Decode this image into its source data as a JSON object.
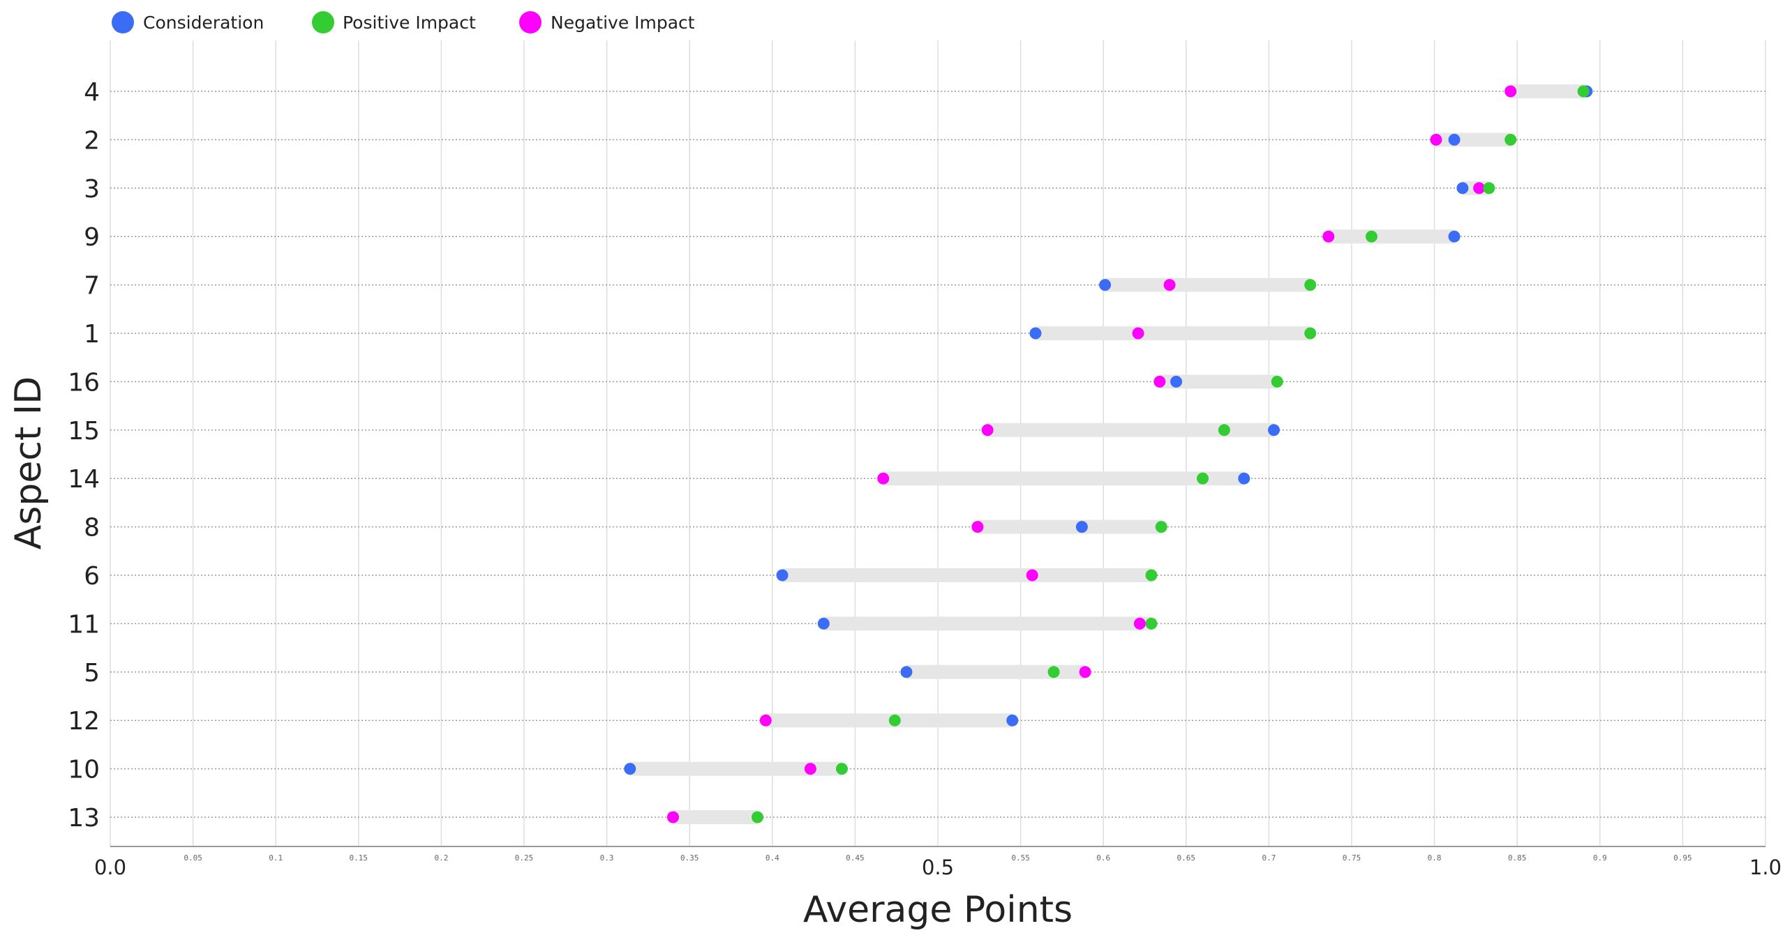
{
  "chart_data": {
    "type": "dumbbell",
    "xlabel": "Average Points",
    "ylabel": "Aspect ID",
    "xlim": [
      0,
      1
    ],
    "grid": {
      "vertical": true
    },
    "legend": {
      "placement": "top-left",
      "entries": [
        {
          "key": "consideration",
          "label": "Consideration"
        },
        {
          "key": "positive",
          "label": "Positive Impact"
        },
        {
          "key": "negative",
          "label": "Negative Impact"
        }
      ]
    },
    "colors": {
      "consideration": "#3b6cf5",
      "positive": "#33cc33",
      "negative": "#ff00ff",
      "range_bar": "#e6e6e6",
      "grid": "#dddddd",
      "row_line": "#999999"
    },
    "x_ticks": [
      {
        "v": 0,
        "label": "0.0",
        "major": true
      },
      {
        "v": 0.05,
        "label": "0.05",
        "major": false
      },
      {
        "v": 0.1,
        "label": "0.1",
        "major": false
      },
      {
        "v": 0.15,
        "label": "0.15",
        "major": false
      },
      {
        "v": 0.2,
        "label": "0.2",
        "major": false
      },
      {
        "v": 0.25,
        "label": "0.25",
        "major": false
      },
      {
        "v": 0.3,
        "label": "0.3",
        "major": false
      },
      {
        "v": 0.35,
        "label": "0.35",
        "major": false
      },
      {
        "v": 0.4,
        "label": "0.4",
        "major": false
      },
      {
        "v": 0.45,
        "label": "0.45",
        "major": false
      },
      {
        "v": 0.5,
        "label": "0.5",
        "major": true
      },
      {
        "v": 0.55,
        "label": "0.55",
        "major": false
      },
      {
        "v": 0.6,
        "label": "0.6",
        "major": false
      },
      {
        "v": 0.65,
        "label": "0.65",
        "major": false
      },
      {
        "v": 0.7,
        "label": "0.7",
        "major": false
      },
      {
        "v": 0.75,
        "label": "0.75",
        "major": false
      },
      {
        "v": 0.8,
        "label": "0.8",
        "major": false
      },
      {
        "v": 0.85,
        "label": "0.85",
        "major": false
      },
      {
        "v": 0.9,
        "label": "0.9",
        "major": false
      },
      {
        "v": 0.95,
        "label": "0.95",
        "major": false
      },
      {
        "v": 1,
        "label": "1.0",
        "major": true
      }
    ],
    "rows": [
      {
        "id": "4",
        "consideration": 0.892,
        "positive": 0.89,
        "negative": 0.846
      },
      {
        "id": "2",
        "consideration": 0.812,
        "positive": 0.846,
        "negative": 0.801
      },
      {
        "id": "3",
        "consideration": 0.817,
        "positive": 0.833,
        "negative": 0.827
      },
      {
        "id": "9",
        "consideration": 0.812,
        "positive": 0.762,
        "negative": 0.736
      },
      {
        "id": "7",
        "consideration": 0.601,
        "positive": 0.725,
        "negative": 0.64
      },
      {
        "id": "1",
        "consideration": 0.559,
        "positive": 0.725,
        "negative": 0.621
      },
      {
        "id": "16",
        "consideration": 0.644,
        "positive": 0.705,
        "negative": 0.634
      },
      {
        "id": "15",
        "consideration": 0.703,
        "positive": 0.673,
        "negative": 0.53
      },
      {
        "id": "14",
        "consideration": 0.685,
        "positive": 0.66,
        "negative": 0.467
      },
      {
        "id": "8",
        "consideration": 0.587,
        "positive": 0.635,
        "negative": 0.524
      },
      {
        "id": "6",
        "consideration": 0.406,
        "positive": 0.629,
        "negative": 0.557
      },
      {
        "id": "11",
        "consideration": 0.431,
        "positive": 0.629,
        "negative": 0.622
      },
      {
        "id": "5",
        "consideration": 0.481,
        "positive": 0.57,
        "negative": 0.589
      },
      {
        "id": "12",
        "consideration": 0.545,
        "positive": 0.474,
        "negative": 0.396
      },
      {
        "id": "10",
        "consideration": 0.314,
        "positive": 0.442,
        "negative": 0.423
      },
      {
        "id": "13",
        "consideration": 0.34,
        "positive": 0.391,
        "negative": 0.34
      }
    ]
  }
}
